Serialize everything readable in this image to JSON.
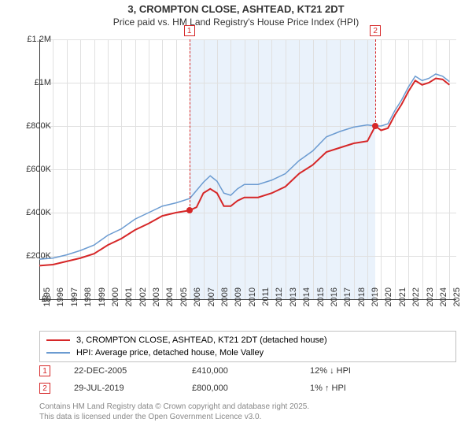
{
  "title": "3, CROMPTON CLOSE, ASHTEAD, KT21 2DT",
  "subtitle": "Price paid vs. HM Land Registry's House Price Index (HPI)",
  "chart": {
    "type": "line",
    "background_color": "#ffffff",
    "grid_color": "#e0e0e0",
    "axis_color": "#333333",
    "font_size": 11,
    "ylim": [
      0,
      1200000
    ],
    "ytick_step": 200000,
    "ytick_labels": [
      "£0",
      "£200K",
      "£400K",
      "£600K",
      "£800K",
      "£1M",
      "£1.2M"
    ],
    "xlim": [
      1995,
      2025.5
    ],
    "xticks": [
      1995,
      1996,
      1997,
      1998,
      1999,
      2000,
      2001,
      2002,
      2003,
      2004,
      2005,
      2006,
      2007,
      2008,
      2009,
      2010,
      2011,
      2012,
      2013,
      2014,
      2015,
      2016,
      2017,
      2018,
      2019,
      2020,
      2021,
      2022,
      2023,
      2024,
      2025
    ],
    "shade": {
      "x_from": 2005.97,
      "x_to": 2019.58,
      "color": "#eaf2fb"
    },
    "series": [
      {
        "name": "price_paid",
        "color": "#d62728",
        "line_width": 2,
        "label": "3, CROMPTON CLOSE, ASHTEAD, KT21 2DT (detached house)",
        "points": [
          [
            1995,
            155000
          ],
          [
            1996,
            160000
          ],
          [
            1997,
            175000
          ],
          [
            1998,
            190000
          ],
          [
            1999,
            210000
          ],
          [
            2000,
            250000
          ],
          [
            2001,
            280000
          ],
          [
            2002,
            320000
          ],
          [
            2003,
            350000
          ],
          [
            2004,
            385000
          ],
          [
            2005,
            400000
          ],
          [
            2005.97,
            410000
          ],
          [
            2006.5,
            425000
          ],
          [
            2007,
            490000
          ],
          [
            2007.5,
            510000
          ],
          [
            2008,
            490000
          ],
          [
            2008.5,
            430000
          ],
          [
            2009,
            430000
          ],
          [
            2009.5,
            455000
          ],
          [
            2010,
            470000
          ],
          [
            2011,
            470000
          ],
          [
            2012,
            490000
          ],
          [
            2013,
            520000
          ],
          [
            2014,
            580000
          ],
          [
            2015,
            620000
          ],
          [
            2016,
            680000
          ],
          [
            2017,
            700000
          ],
          [
            2018,
            720000
          ],
          [
            2019,
            730000
          ],
          [
            2019.58,
            800000
          ],
          [
            2020,
            780000
          ],
          [
            2020.5,
            790000
          ],
          [
            2021,
            850000
          ],
          [
            2021.5,
            900000
          ],
          [
            2022,
            960000
          ],
          [
            2022.5,
            1010000
          ],
          [
            2023,
            990000
          ],
          [
            2023.5,
            1000000
          ],
          [
            2024,
            1020000
          ],
          [
            2024.5,
            1015000
          ],
          [
            2025,
            990000
          ]
        ]
      },
      {
        "name": "hpi",
        "color": "#6b9bd1",
        "line_width": 1.5,
        "label": "HPI: Average price, detached house, Mole Valley",
        "points": [
          [
            1995,
            185000
          ],
          [
            1996,
            190000
          ],
          [
            1997,
            205000
          ],
          [
            1998,
            225000
          ],
          [
            1999,
            250000
          ],
          [
            2000,
            295000
          ],
          [
            2001,
            325000
          ],
          [
            2002,
            370000
          ],
          [
            2003,
            400000
          ],
          [
            2004,
            430000
          ],
          [
            2005,
            445000
          ],
          [
            2006,
            465000
          ],
          [
            2007,
            540000
          ],
          [
            2007.5,
            570000
          ],
          [
            2008,
            545000
          ],
          [
            2008.5,
            490000
          ],
          [
            2009,
            480000
          ],
          [
            2009.5,
            510000
          ],
          [
            2010,
            530000
          ],
          [
            2011,
            530000
          ],
          [
            2012,
            550000
          ],
          [
            2013,
            580000
          ],
          [
            2014,
            640000
          ],
          [
            2015,
            685000
          ],
          [
            2016,
            750000
          ],
          [
            2017,
            775000
          ],
          [
            2018,
            795000
          ],
          [
            2019,
            805000
          ],
          [
            2019.58,
            800000
          ],
          [
            2020,
            800000
          ],
          [
            2020.5,
            810000
          ],
          [
            2021,
            870000
          ],
          [
            2021.5,
            920000
          ],
          [
            2022,
            980000
          ],
          [
            2022.5,
            1030000
          ],
          [
            2023,
            1010000
          ],
          [
            2023.5,
            1020000
          ],
          [
            2024,
            1040000
          ],
          [
            2024.5,
            1030000
          ],
          [
            2025,
            1005000
          ]
        ]
      }
    ],
    "markers": [
      {
        "n": "1",
        "x": 2005.97,
        "y": 410000,
        "color": "#d62728"
      },
      {
        "n": "2",
        "x": 2019.58,
        "y": 800000,
        "color": "#d62728"
      }
    ]
  },
  "legend": {
    "border_color": "#c0c0c0",
    "items": [
      {
        "color": "#d62728",
        "width": 2,
        "label": "3, CROMPTON CLOSE, ASHTEAD, KT21 2DT (detached house)"
      },
      {
        "color": "#6b9bd1",
        "width": 1.5,
        "label": "HPI: Average price, detached house, Mole Valley"
      }
    ]
  },
  "events": [
    {
      "n": "1",
      "color": "#d62728",
      "date": "22-DEC-2005",
      "price": "£410,000",
      "pct": "12%",
      "arrow": "↓",
      "vs": "HPI"
    },
    {
      "n": "2",
      "color": "#d62728",
      "date": "29-JUL-2019",
      "price": "£800,000",
      "pct": "1%",
      "arrow": "↑",
      "vs": "HPI"
    }
  ],
  "footer": {
    "line1": "Contains HM Land Registry data © Crown copyright and database right 2025.",
    "line2": "This data is licensed under the Open Government Licence v3.0."
  }
}
